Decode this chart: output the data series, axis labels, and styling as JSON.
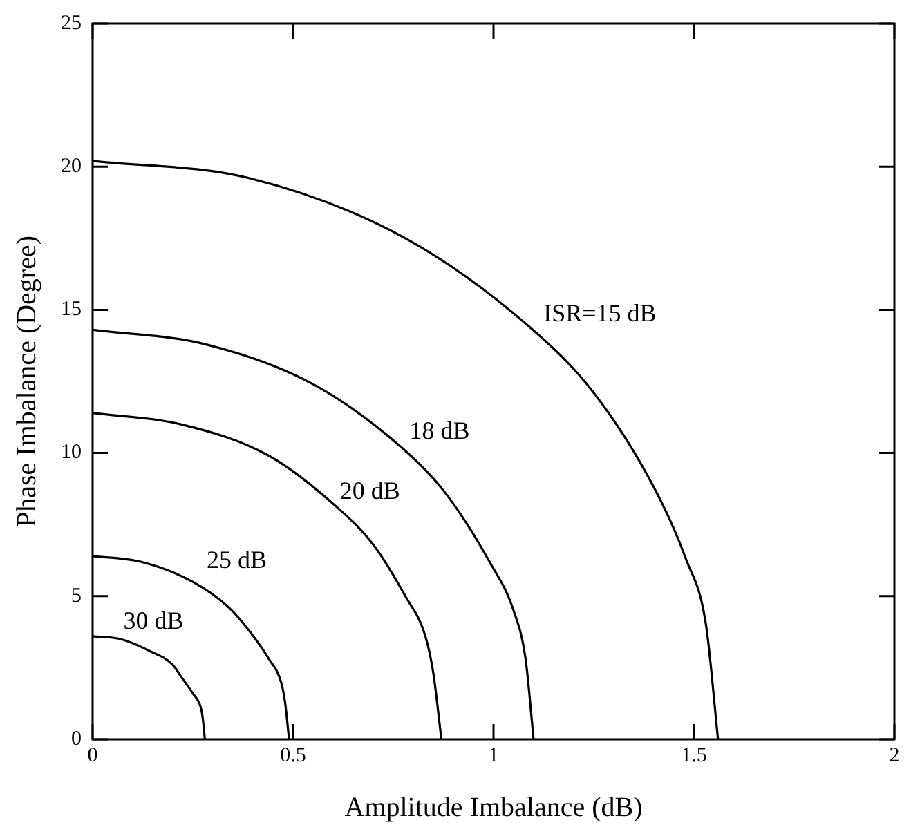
{
  "chart_data": {
    "type": "line",
    "xlabel": "Amplitude Imbalance (dB)",
    "ylabel": "Phase Imbalance (Degree)",
    "xlim": [
      0,
      2
    ],
    "xticks": [
      0,
      0.5,
      1,
      1.5,
      2
    ],
    "ylim": [
      0,
      25
    ],
    "yticks": [
      0,
      5,
      10,
      15,
      20,
      25
    ],
    "grid": false,
    "legend": false,
    "marker": "none",
    "line_style": "solid",
    "series": [
      {
        "name": "ISR=15 dB",
        "color": "#000000",
        "x": [
          0,
          0.39,
          0.78,
          1.09,
          1.25,
          1.4,
          1.48,
          1.53,
          1.56
        ],
        "values": [
          20.2,
          19.6,
          17.5,
          14.4,
          12.1,
          8.8,
          6.3,
          4.0,
          0
        ]
      },
      {
        "name": "18 dB",
        "color": "#000000",
        "x": [
          0,
          0.28,
          0.55,
          0.77,
          0.88,
          0.99,
          1.05,
          1.08,
          1.1
        ],
        "values": [
          14.3,
          13.8,
          12.4,
          10.2,
          8.6,
          6.2,
          4.5,
          2.8,
          0
        ]
      },
      {
        "name": "20 dB",
        "color": "#000000",
        "x": [
          0,
          0.22,
          0.44,
          0.61,
          0.7,
          0.78,
          0.83,
          0.85,
          0.87
        ],
        "values": [
          11.4,
          11.0,
          9.9,
          8.1,
          6.8,
          5.0,
          3.6,
          2.3,
          0
        ]
      },
      {
        "name": "25 dB",
        "color": "#000000",
        "x": [
          0,
          0.12,
          0.25,
          0.34,
          0.39,
          0.44,
          0.47,
          0.48,
          0.49
        ],
        "values": [
          6.4,
          6.2,
          5.5,
          4.6,
          3.8,
          2.8,
          2.0,
          1.3,
          0
        ]
      },
      {
        "name": "30 dB",
        "color": "#000000",
        "x": [
          0,
          0.07,
          0.14,
          0.2,
          0.22,
          0.25,
          0.27,
          0.275,
          0.28
        ],
        "values": [
          3.6,
          3.5,
          3.1,
          2.6,
          2.2,
          1.6,
          1.1,
          0.7,
          0
        ]
      }
    ]
  }
}
